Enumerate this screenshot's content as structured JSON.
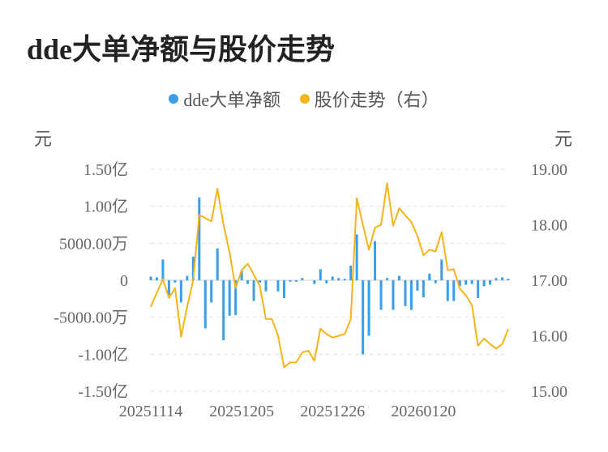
{
  "title": "dde大单净额与股价走势",
  "colors": {
    "bar": "#3a9fe8",
    "line": "#f4b41a",
    "grid": "#e4e4e4"
  },
  "chart_data": {
    "type": "bar+line",
    "title": "dde大单净额与股价走势",
    "legend": [
      {
        "name": "dde大单净额",
        "color": "#3a9fe8",
        "type": "bar"
      },
      {
        "name": "股价走势（右）",
        "color": "#f4b41a",
        "type": "line"
      }
    ],
    "left_axis": {
      "unit": "元",
      "ylim": [
        -15000,
        15000
      ],
      "ticks": [
        15000,
        10000,
        5000,
        0,
        -5000,
        -10000,
        -15000
      ],
      "tick_labels": [
        "1.50亿",
        "1.00亿",
        "5000.00万",
        "0",
        "-5000.00万",
        "-1.00亿",
        "-1.50亿"
      ]
    },
    "right_axis": {
      "unit": "元",
      "ylim": [
        15.0,
        19.0
      ],
      "ticks": [
        19.0,
        18.0,
        17.0,
        16.0,
        15.0
      ],
      "tick_labels": [
        "19.00",
        "18.00",
        "17.00",
        "16.00",
        "15.00"
      ]
    },
    "x_tick_labels": [
      {
        "index": 0,
        "label": "20251114"
      },
      {
        "index": 15,
        "label": "20251205"
      },
      {
        "index": 30,
        "label": "20251226"
      },
      {
        "index": 45,
        "label": "20260120"
      }
    ],
    "bar_values": [
      500,
      400,
      2800,
      -2000,
      -300,
      -3000,
      600,
      3200,
      11200,
      -6500,
      -3000,
      4300,
      -8100,
      -4800,
      -4700,
      1300,
      -500,
      -2800,
      -300,
      -1500,
      0,
      -1500,
      -2400,
      -200,
      -200,
      300,
      0,
      -500,
      1500,
      -400,
      500,
      300,
      200,
      2000,
      6200,
      -10000,
      -7500,
      5300,
      -4000,
      300,
      -4000,
      600,
      -3500,
      -4000,
      -1400,
      -2300,
      900,
      -400,
      2800,
      -2800,
      -2800,
      -800,
      -600,
      -500,
      -2400,
      -800,
      -600,
      300,
      400,
      200
    ],
    "price_values": [
      16.52,
      16.78,
      17.02,
      16.68,
      16.86,
      15.98,
      16.52,
      17.0,
      18.18,
      18.12,
      18.06,
      18.65,
      18.0,
      17.5,
      16.86,
      17.18,
      17.3,
      17.1,
      16.9,
      16.3,
      16.3,
      16.0,
      15.43,
      15.52,
      15.52,
      15.7,
      15.73,
      15.55,
      16.13,
      16.03,
      15.97,
      16.0,
      16.03,
      16.3,
      18.48,
      18.0,
      17.55,
      17.95,
      18.0,
      18.75,
      17.98,
      18.3,
      18.17,
      18.05,
      17.8,
      17.45,
      17.55,
      17.52,
      17.87,
      17.18,
      17.2,
      16.85,
      16.73,
      16.55,
      15.82,
      15.95,
      15.85,
      15.77,
      15.85,
      16.12
    ]
  }
}
